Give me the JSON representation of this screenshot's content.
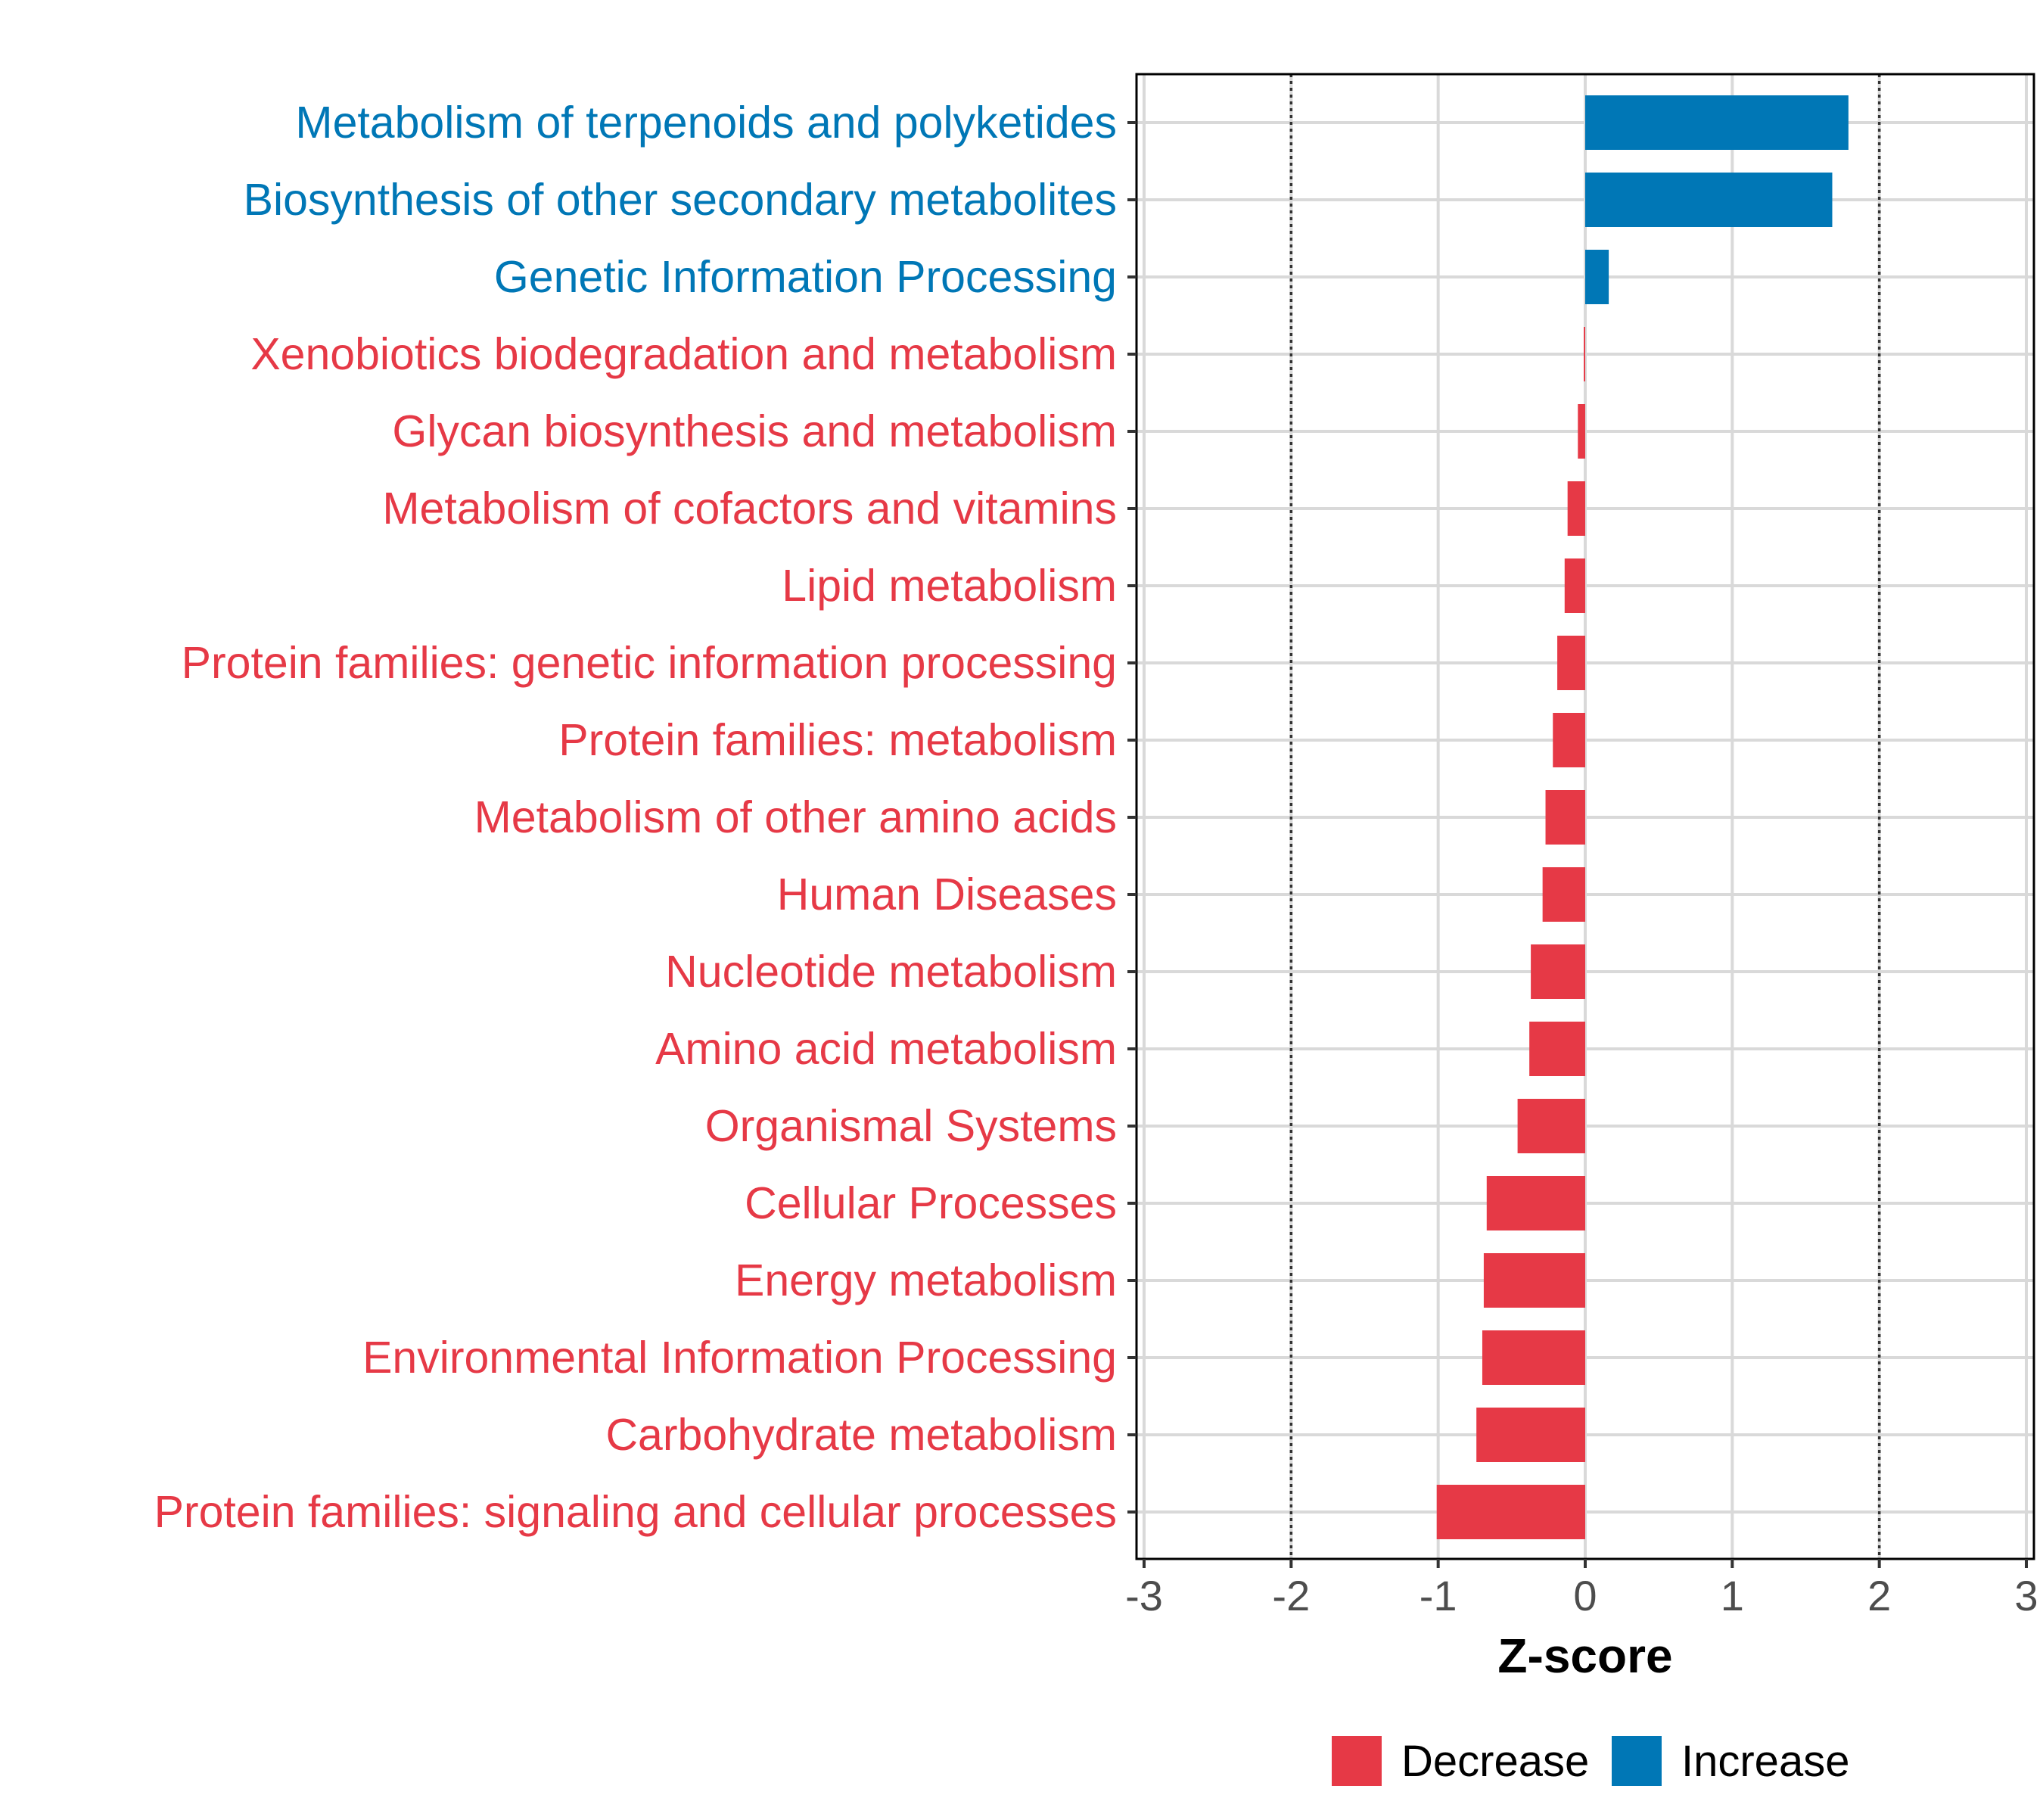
{
  "chart_data": {
    "type": "bar",
    "orientation": "horizontal",
    "xlabel": "Z-score",
    "xlim": [
      -3,
      3
    ],
    "xticks": [
      -3,
      -2,
      -1,
      0,
      1,
      2,
      3
    ],
    "reference_lines": [
      -2,
      2
    ],
    "grid": true,
    "legend_position": "bottom",
    "colors": {
      "Decrease": "#E63946",
      "Increase": "#0077B6"
    },
    "legend": [
      {
        "label": "Decrease",
        "color": "#E63946"
      },
      {
        "label": "Increase",
        "color": "#0077B6"
      }
    ],
    "categories": [
      "Metabolism of terpenoids and polyketides",
      "Biosynthesis of other secondary metabolites",
      "Genetic Information Processing",
      "Xenobiotics biodegradation and metabolism",
      "Glycan biosynthesis and metabolism",
      "Metabolism of cofactors and vitamins",
      "Lipid metabolism",
      "Protein families: genetic information processing",
      "Protein families: metabolism",
      "Metabolism of other amino acids",
      "Human Diseases",
      "Nucleotide metabolism",
      "Amino acid metabolism",
      "Organismal Systems",
      "Cellular Processes",
      "Energy metabolism",
      "Environmental Information Processing",
      "Carbohydrate metabolism",
      "Protein families: signaling and cellular processes"
    ],
    "values": [
      1.79,
      1.68,
      0.16,
      -0.01,
      -0.05,
      -0.12,
      -0.14,
      -0.19,
      -0.22,
      -0.27,
      -0.29,
      -0.37,
      -0.38,
      -0.46,
      -0.67,
      -0.69,
      -0.7,
      -0.74,
      -1.01
    ],
    "groups": [
      "Increase",
      "Increase",
      "Increase",
      "Decrease",
      "Decrease",
      "Decrease",
      "Decrease",
      "Decrease",
      "Decrease",
      "Decrease",
      "Decrease",
      "Decrease",
      "Decrease",
      "Decrease",
      "Decrease",
      "Decrease",
      "Decrease",
      "Decrease",
      "Decrease"
    ]
  }
}
